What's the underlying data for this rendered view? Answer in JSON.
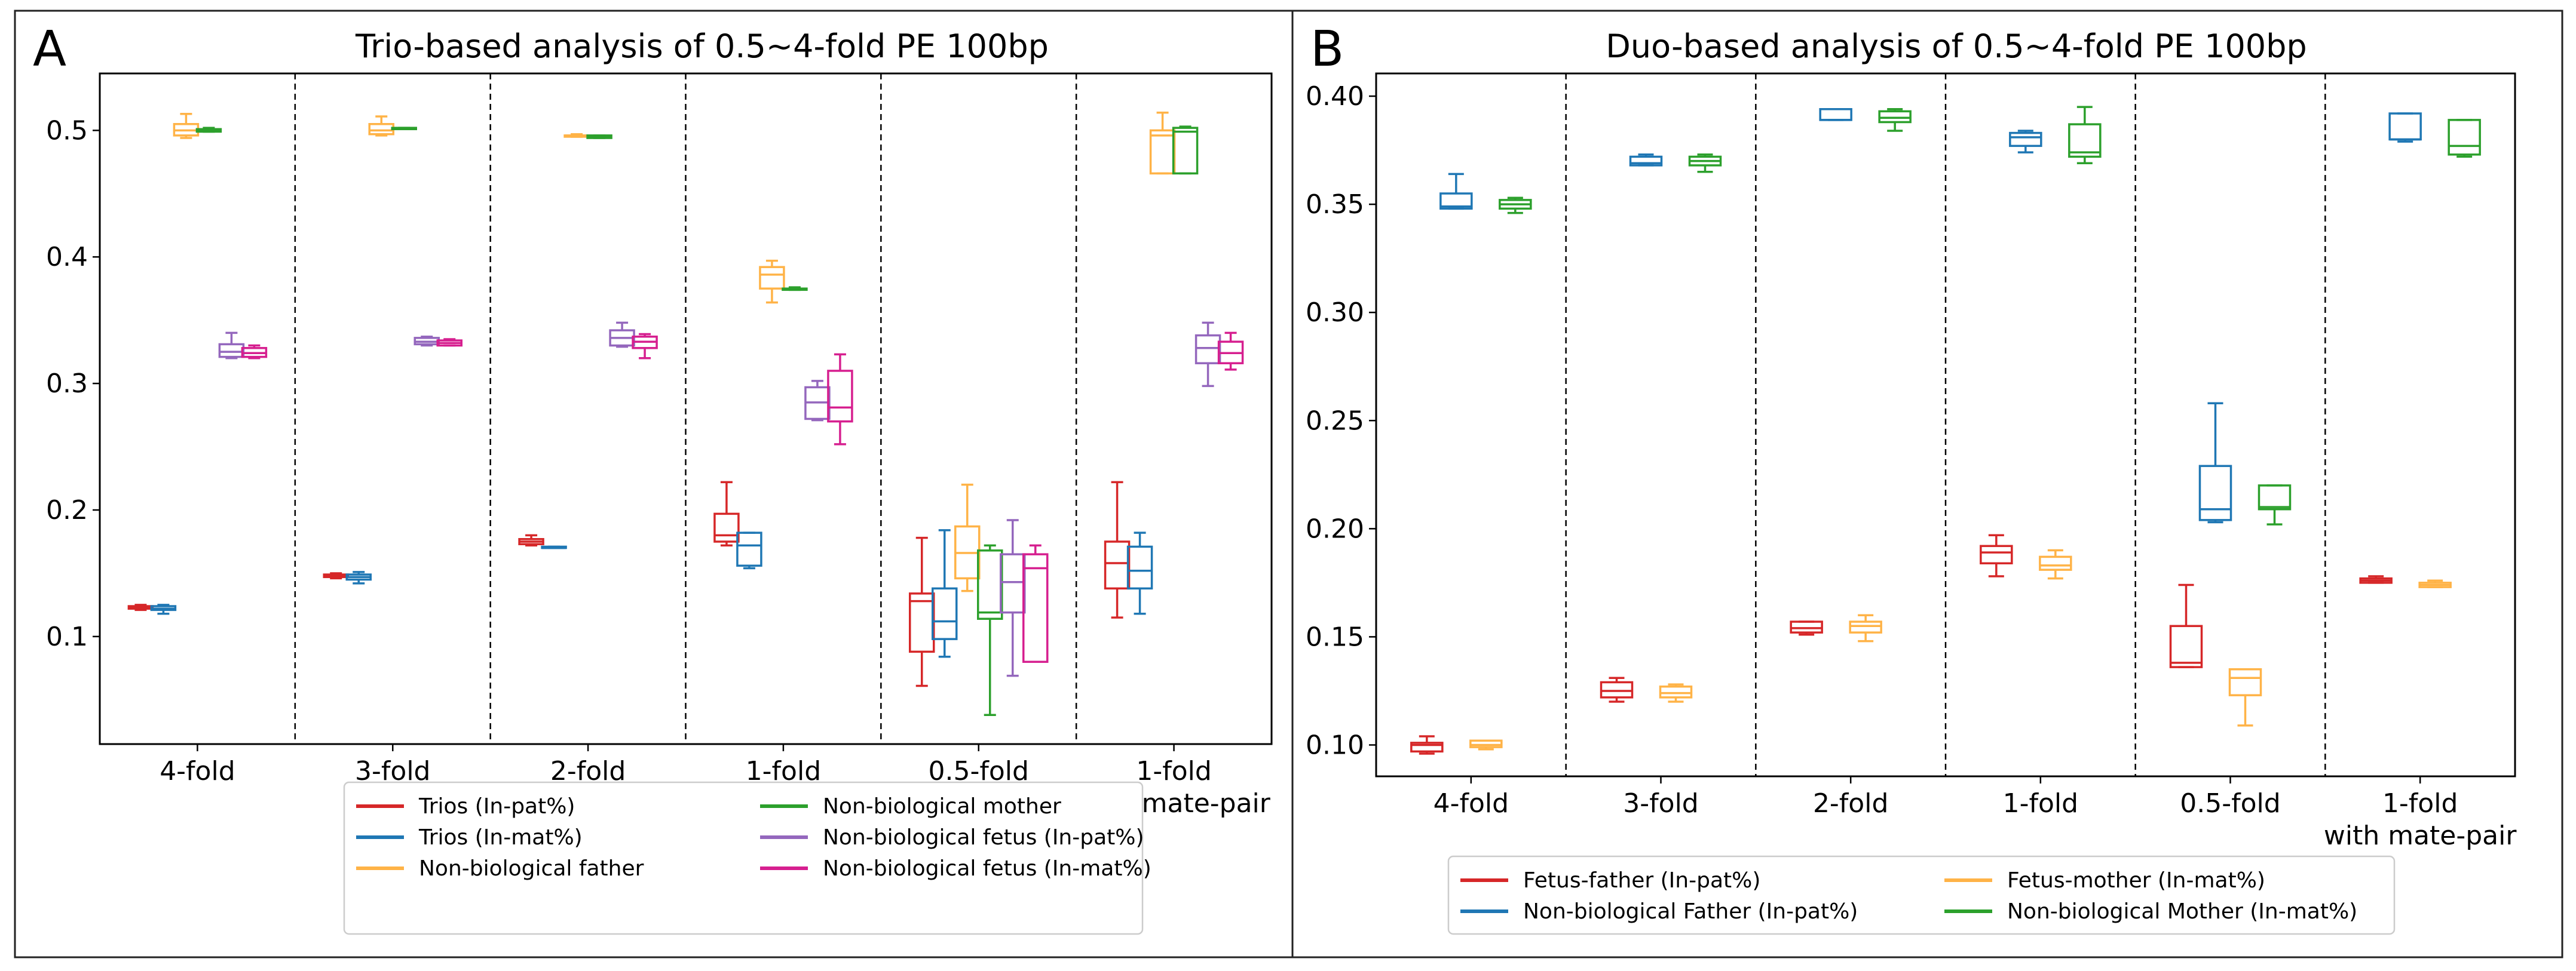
{
  "panels": [
    {
      "letter": "A",
      "title": "Trio-based analysis of 0.5~4-fold PE 100bp",
      "chart_data": {
        "type": "boxplot",
        "title": "Trio-based analysis of 0.5~4-fold PE 100bp",
        "categories": [
          "4-fold",
          "3-fold",
          "2-fold",
          "1-fold",
          "0.5-fold",
          "1-fold\nwith mate-pair"
        ],
        "ylim": [
          0.015,
          0.545
        ],
        "yticks": [
          0.1,
          0.2,
          0.3,
          0.4,
          0.5
        ],
        "ytick_labels": [
          "0.1",
          "0.2",
          "0.3",
          "0.4",
          "0.5"
        ],
        "legend_columns": 2,
        "series": [
          {
            "name": "Trios (In-pat%)",
            "color": "#d62728",
            "boxes": [
              {
                "min": 0.121,
                "q1": 0.122,
                "median": 0.123,
                "q3": 0.124,
                "max": 0.125
              },
              {
                "min": 0.146,
                "q1": 0.147,
                "median": 0.148,
                "q3": 0.149,
                "max": 0.15
              },
              {
                "min": 0.172,
                "q1": 0.173,
                "median": 0.175,
                "q3": 0.177,
                "max": 0.18
              },
              {
                "min": 0.172,
                "q1": 0.175,
                "median": 0.18,
                "q3": 0.197,
                "max": 0.222
              },
              {
                "min": 0.061,
                "q1": 0.088,
                "median": 0.128,
                "q3": 0.134,
                "max": 0.178
              },
              {
                "min": 0.115,
                "q1": 0.138,
                "median": 0.158,
                "q3": 0.175,
                "max": 0.222
              }
            ]
          },
          {
            "name": "Trios (In-mat%)",
            "color": "#1f77b4",
            "boxes": [
              {
                "min": 0.118,
                "q1": 0.121,
                "median": 0.122,
                "q3": 0.124,
                "max": 0.125
              },
              {
                "min": 0.142,
                "q1": 0.145,
                "median": 0.147,
                "q3": 0.149,
                "max": 0.151
              },
              {
                "min": 0.17,
                "q1": 0.17,
                "median": 0.17,
                "q3": 0.171,
                "max": 0.171
              },
              {
                "min": 0.154,
                "q1": 0.156,
                "median": 0.172,
                "q3": 0.182,
                "max": 0.182
              },
              {
                "min": 0.084,
                "q1": 0.098,
                "median": 0.112,
                "q3": 0.138,
                "max": 0.184
              },
              {
                "min": 0.118,
                "q1": 0.138,
                "median": 0.152,
                "q3": 0.171,
                "max": 0.182
              }
            ]
          },
          {
            "name": "Non-biological father",
            "color": "#ffb347",
            "boxes": [
              {
                "min": 0.494,
                "q1": 0.496,
                "median": 0.5,
                "q3": 0.505,
                "max": 0.513
              },
              {
                "min": 0.496,
                "q1": 0.497,
                "median": 0.5,
                "q3": 0.505,
                "max": 0.511
              },
              {
                "min": 0.495,
                "q1": 0.495,
                "median": 0.496,
                "q3": 0.496,
                "max": 0.497
              },
              {
                "min": 0.364,
                "q1": 0.375,
                "median": 0.386,
                "q3": 0.392,
                "max": 0.397
              },
              {
                "min": 0.136,
                "q1": 0.146,
                "median": 0.166,
                "q3": 0.187,
                "max": 0.22
              },
              {
                "min": 0.466,
                "q1": 0.466,
                "median": 0.496,
                "q3": 0.5,
                "max": 0.514
              }
            ]
          },
          {
            "name": "Non-biological mother",
            "color": "#2ca02c",
            "boxes": [
              {
                "min": 0.499,
                "q1": 0.499,
                "median": 0.5,
                "q3": 0.501,
                "max": 0.502
              },
              {
                "min": 0.501,
                "q1": 0.501,
                "median": 0.501,
                "q3": 0.502,
                "max": 0.502
              },
              {
                "min": 0.494,
                "q1": 0.494,
                "median": 0.495,
                "q3": 0.496,
                "max": 0.496
              },
              {
                "min": 0.374,
                "q1": 0.374,
                "median": 0.375,
                "q3": 0.375,
                "max": 0.376
              },
              {
                "min": 0.038,
                "q1": 0.114,
                "median": 0.119,
                "q3": 0.168,
                "max": 0.172
              },
              {
                "min": 0.466,
                "q1": 0.466,
                "median": 0.499,
                "q3": 0.502,
                "max": 0.503
              }
            ]
          },
          {
            "name": "Non-biological fetus (In-pat%)",
            "color": "#9467bd",
            "boxes": [
              {
                "min": 0.32,
                "q1": 0.321,
                "median": 0.325,
                "q3": 0.331,
                "max": 0.34
              },
              {
                "min": 0.33,
                "q1": 0.331,
                "median": 0.333,
                "q3": 0.336,
                "max": 0.337
              },
              {
                "min": 0.329,
                "q1": 0.33,
                "median": 0.336,
                "q3": 0.342,
                "max": 0.348
              },
              {
                "min": 0.271,
                "q1": 0.272,
                "median": 0.285,
                "q3": 0.297,
                "max": 0.302
              },
              {
                "min": 0.069,
                "q1": 0.119,
                "median": 0.143,
                "q3": 0.165,
                "max": 0.192
              },
              {
                "min": 0.298,
                "q1": 0.316,
                "median": 0.328,
                "q3": 0.338,
                "max": 0.348
              }
            ]
          },
          {
            "name": "Non-biological fetus (In-mat%)",
            "color": "#d61f8f",
            "boxes": [
              {
                "min": 0.32,
                "q1": 0.321,
                "median": 0.324,
                "q3": 0.328,
                "max": 0.33
              },
              {
                "min": 0.33,
                "q1": 0.33,
                "median": 0.332,
                "q3": 0.334,
                "max": 0.335
              },
              {
                "min": 0.32,
                "q1": 0.328,
                "median": 0.333,
                "q3": 0.337,
                "max": 0.339
              },
              {
                "min": 0.252,
                "q1": 0.27,
                "median": 0.281,
                "q3": 0.31,
                "max": 0.323
              },
              {
                "min": 0.08,
                "q1": 0.08,
                "median": 0.154,
                "q3": 0.165,
                "max": 0.172
              },
              {
                "min": 0.311,
                "q1": 0.316,
                "median": 0.324,
                "q3": 0.333,
                "max": 0.34
              }
            ]
          }
        ]
      }
    },
    {
      "letter": "B",
      "title": "Duo-based analysis of 0.5~4-fold PE 100bp",
      "chart_data": {
        "type": "boxplot",
        "title": "Duo-based analysis of 0.5~4-fold PE 100bp",
        "categories": [
          "4-fold",
          "3-fold",
          "2-fold",
          "1-fold",
          "0.5-fold",
          "1-fold\nwith mate-pair"
        ],
        "ylim": [
          0.0855,
          0.4105
        ],
        "yticks": [
          0.1,
          0.15,
          0.2,
          0.25,
          0.3,
          0.35,
          0.4
        ],
        "ytick_labels": [
          "0.10",
          "0.15",
          "0.20",
          "0.25",
          "0.30",
          "0.35",
          "0.40"
        ],
        "legend_columns": 2,
        "series": [
          {
            "name": "Fetus-father (In-pat%)",
            "color": "#d62728",
            "boxes": [
              {
                "min": 0.096,
                "q1": 0.097,
                "median": 0.1,
                "q3": 0.101,
                "max": 0.104
              },
              {
                "min": 0.12,
                "q1": 0.122,
                "median": 0.125,
                "q3": 0.129,
                "max": 0.131
              },
              {
                "min": 0.151,
                "q1": 0.152,
                "median": 0.154,
                "q3": 0.157,
                "max": 0.157
              },
              {
                "min": 0.178,
                "q1": 0.184,
                "median": 0.189,
                "q3": 0.192,
                "max": 0.197
              },
              {
                "min": 0.136,
                "q1": 0.136,
                "median": 0.138,
                "q3": 0.155,
                "max": 0.174
              },
              {
                "min": 0.175,
                "q1": 0.175,
                "median": 0.176,
                "q3": 0.177,
                "max": 0.178
              }
            ]
          },
          {
            "name": "Non-biological Father (In-pat%)",
            "color": "#1f77b4",
            "boxes": [
              {
                "min": 0.348,
                "q1": 0.348,
                "median": 0.349,
                "q3": 0.355,
                "max": 0.364
              },
              {
                "min": 0.368,
                "q1": 0.368,
                "median": 0.369,
                "q3": 0.372,
                "max": 0.373
              },
              {
                "min": 0.389,
                "q1": 0.389,
                "median": 0.389,
                "q3": 0.394,
                "max": 0.394
              },
              {
                "min": 0.374,
                "q1": 0.377,
                "median": 0.381,
                "q3": 0.383,
                "max": 0.384
              },
              {
                "min": 0.203,
                "q1": 0.204,
                "median": 0.209,
                "q3": 0.229,
                "max": 0.258
              },
              {
                "min": 0.379,
                "q1": 0.38,
                "median": 0.38,
                "q3": 0.392,
                "max": 0.392
              }
            ]
          },
          {
            "name": "Fetus-mother (In-mat%)",
            "color": "#ffb347",
            "boxes": [
              {
                "min": 0.098,
                "q1": 0.099,
                "median": 0.1,
                "q3": 0.102,
                "max": 0.102
              },
              {
                "min": 0.12,
                "q1": 0.122,
                "median": 0.124,
                "q3": 0.127,
                "max": 0.128
              },
              {
                "min": 0.148,
                "q1": 0.152,
                "median": 0.155,
                "q3": 0.157,
                "max": 0.16
              },
              {
                "min": 0.177,
                "q1": 0.181,
                "median": 0.183,
                "q3": 0.187,
                "max": 0.19
              },
              {
                "min": 0.109,
                "q1": 0.123,
                "median": 0.131,
                "q3": 0.135,
                "max": 0.135
              },
              {
                "min": 0.173,
                "q1": 0.173,
                "median": 0.174,
                "q3": 0.175,
                "max": 0.176
              }
            ]
          },
          {
            "name": "Non-biological Mother (In-mat%)",
            "color": "#2ca02c",
            "boxes": [
              {
                "min": 0.346,
                "q1": 0.348,
                "median": 0.35,
                "q3": 0.352,
                "max": 0.353
              },
              {
                "min": 0.365,
                "q1": 0.368,
                "median": 0.37,
                "q3": 0.372,
                "max": 0.373
              },
              {
                "min": 0.384,
                "q1": 0.388,
                "median": 0.39,
                "q3": 0.393,
                "max": 0.394
              },
              {
                "min": 0.369,
                "q1": 0.372,
                "median": 0.374,
                "q3": 0.387,
                "max": 0.395
              },
              {
                "min": 0.202,
                "q1": 0.209,
                "median": 0.21,
                "q3": 0.22,
                "max": 0.22
              },
              {
                "min": 0.372,
                "q1": 0.373,
                "median": 0.377,
                "q3": 0.389,
                "max": 0.389
              }
            ]
          }
        ]
      }
    }
  ]
}
